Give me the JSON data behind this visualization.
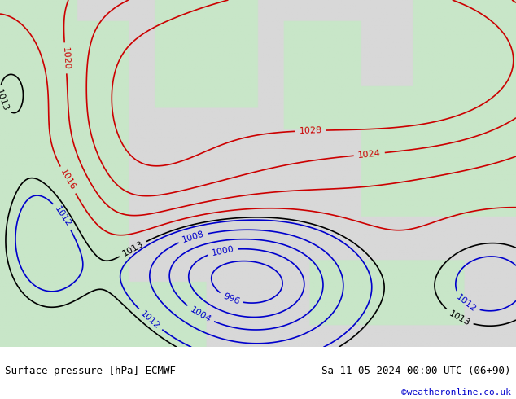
{
  "title_left": "Surface pressure [hPa] ECMWF",
  "title_right": "Sa 11-05-2024 00:00 UTC (06+90)",
  "copyright": "©weatheronline.co.uk",
  "bg_color": "#e8e8e8",
  "land_color_low": "#c8e6c8",
  "land_color_high": "#a8d4a8",
  "sea_color": "#d8d8d8",
  "bottom_bar_color": "#ffffff",
  "contour_low_color": "#0000cc",
  "contour_high_color": "#cc0000",
  "contour_black_color": "#000000",
  "label_fontsize": 8,
  "title_fontsize": 9,
  "copyright_color": "#0000cc",
  "figsize": [
    6.34,
    4.9
  ],
  "dpi": 100
}
